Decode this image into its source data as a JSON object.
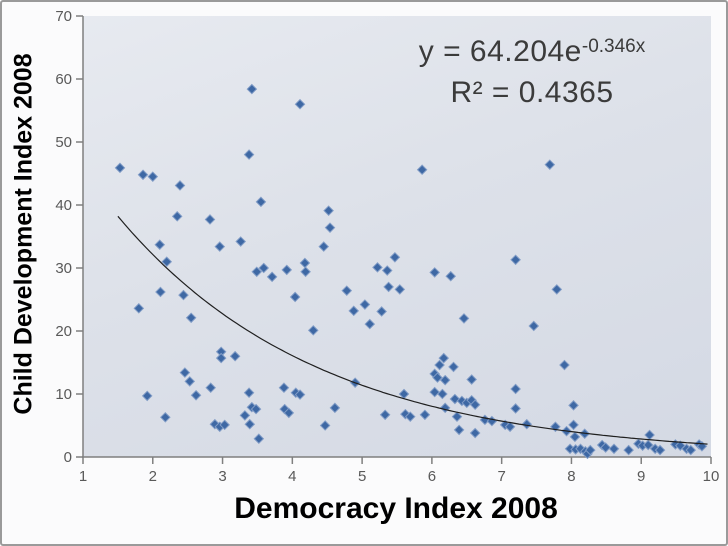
{
  "chart_data": {
    "type": "scatter",
    "title": "",
    "xlabel": "Democracy Index 2008",
    "ylabel": "Child Development Index 2008",
    "xlim": [
      1,
      10
    ],
    "ylim": [
      0,
      70
    ],
    "x_ticks": [
      1,
      2,
      3,
      4,
      5,
      6,
      7,
      8,
      9,
      10
    ],
    "y_ticks": [
      0,
      10,
      20,
      30,
      40,
      50,
      60,
      70
    ],
    "grid": false,
    "legend": "none",
    "equation": {
      "prefix": "y = 64.204e",
      "exponent": "-0.346x",
      "r_squared": "R² = 0.4365"
    },
    "trendline": {
      "type": "exponential",
      "a": 64.204,
      "b": -0.346,
      "x_start": 1.5,
      "x_end": 9.95
    },
    "points": [
      [
        1.53,
        45.9
      ],
      [
        1.8,
        23.6
      ],
      [
        1.86,
        44.8
      ],
      [
        1.92,
        9.7
      ],
      [
        2.0,
        44.5
      ],
      [
        2.1,
        33.7
      ],
      [
        2.11,
        26.2
      ],
      [
        2.18,
        6.3
      ],
      [
        2.2,
        31.0
      ],
      [
        2.35,
        38.2
      ],
      [
        2.39,
        43.1
      ],
      [
        2.44,
        25.7
      ],
      [
        2.46,
        13.4
      ],
      [
        2.53,
        12.0
      ],
      [
        2.55,
        22.1
      ],
      [
        2.62,
        9.8
      ],
      [
        2.82,
        37.7
      ],
      [
        2.83,
        11.0
      ],
      [
        2.89,
        5.2
      ],
      [
        2.96,
        33.4
      ],
      [
        2.96,
        4.8
      ],
      [
        2.98,
        16.7
      ],
      [
        2.98,
        15.7
      ],
      [
        3.03,
        5.1
      ],
      [
        3.18,
        16.0
      ],
      [
        3.26,
        34.2
      ],
      [
        3.32,
        6.6
      ],
      [
        3.38,
        48.0
      ],
      [
        3.38,
        10.2
      ],
      [
        3.39,
        5.2
      ],
      [
        3.42,
        58.4
      ],
      [
        3.42,
        7.9
      ],
      [
        3.48,
        7.6
      ],
      [
        3.49,
        29.4
      ],
      [
        3.52,
        2.9
      ],
      [
        3.55,
        40.5
      ],
      [
        3.59,
        30.0
      ],
      [
        3.71,
        28.6
      ],
      [
        3.88,
        11.0
      ],
      [
        3.89,
        7.6
      ],
      [
        3.92,
        29.7
      ],
      [
        3.95,
        7.0
      ],
      [
        4.04,
        25.4
      ],
      [
        4.05,
        10.2
      ],
      [
        4.11,
        56.0
      ],
      [
        4.11,
        9.9
      ],
      [
        4.18,
        30.8
      ],
      [
        4.19,
        29.4
      ],
      [
        4.3,
        20.1
      ],
      [
        4.45,
        33.4
      ],
      [
        4.47,
        5.0
      ],
      [
        4.52,
        39.1
      ],
      [
        4.54,
        36.4
      ],
      [
        4.61,
        7.8
      ],
      [
        4.78,
        26.4
      ],
      [
        4.88,
        23.2
      ],
      [
        4.9,
        11.8
      ],
      [
        5.04,
        24.2
      ],
      [
        5.11,
        21.1
      ],
      [
        5.22,
        30.1
      ],
      [
        5.28,
        23.1
      ],
      [
        5.33,
        6.7
      ],
      [
        5.36,
        29.6
      ],
      [
        5.38,
        27.0
      ],
      [
        5.47,
        31.7
      ],
      [
        5.54,
        26.6
      ],
      [
        5.6,
        10.0
      ],
      [
        5.62,
        6.8
      ],
      [
        5.69,
        6.4
      ],
      [
        5.86,
        45.6
      ],
      [
        5.9,
        6.7
      ],
      [
        6.04,
        29.3
      ],
      [
        6.04,
        13.2
      ],
      [
        6.04,
        10.3
      ],
      [
        6.08,
        12.6
      ],
      [
        6.11,
        14.6
      ],
      [
        6.15,
        10.0
      ],
      [
        6.17,
        15.7
      ],
      [
        6.19,
        12.2
      ],
      [
        6.19,
        7.8
      ],
      [
        6.27,
        28.7
      ],
      [
        6.31,
        14.3
      ],
      [
        6.33,
        9.2
      ],
      [
        6.36,
        6.4
      ],
      [
        6.39,
        4.3
      ],
      [
        6.43,
        8.9
      ],
      [
        6.46,
        22.0
      ],
      [
        6.5,
        8.6
      ],
      [
        6.57,
        9.0
      ],
      [
        6.57,
        12.3
      ],
      [
        6.62,
        8.3
      ],
      [
        6.62,
        3.8
      ],
      [
        6.76,
        5.9
      ],
      [
        6.86,
        5.7
      ],
      [
        7.05,
        5.1
      ],
      [
        7.12,
        4.8
      ],
      [
        7.2,
        31.3
      ],
      [
        7.2,
        10.8
      ],
      [
        7.2,
        7.7
      ],
      [
        7.36,
        5.2
      ],
      [
        7.46,
        20.8
      ],
      [
        7.69,
        46.4
      ],
      [
        7.77,
        4.8
      ],
      [
        7.79,
        26.6
      ],
      [
        7.9,
        14.6
      ],
      [
        7.93,
        4.1
      ],
      [
        7.98,
        1.3
      ],
      [
        8.03,
        8.2
      ],
      [
        8.03,
        5.1
      ],
      [
        8.05,
        3.2
      ],
      [
        8.06,
        1.2
      ],
      [
        8.13,
        1.3
      ],
      [
        8.19,
        3.7
      ],
      [
        8.2,
        0.9
      ],
      [
        8.23,
        0.5
      ],
      [
        8.27,
        1.1
      ],
      [
        8.44,
        1.9
      ],
      [
        8.49,
        1.5
      ],
      [
        8.61,
        1.3
      ],
      [
        8.82,
        1.1
      ],
      [
        8.96,
        2.1
      ],
      [
        9.02,
        1.8
      ],
      [
        9.1,
        1.9
      ],
      [
        9.12,
        3.5
      ],
      [
        9.2,
        1.3
      ],
      [
        9.27,
        1.1
      ],
      [
        9.49,
        2.0
      ],
      [
        9.56,
        1.8
      ],
      [
        9.65,
        1.3
      ],
      [
        9.71,
        1.1
      ],
      [
        9.83,
        2.0
      ],
      [
        9.87,
        1.7
      ]
    ]
  },
  "colors": {
    "marker": "#3e68a4",
    "marker_edge": "#819cc6",
    "trendline": "#1f1f1f",
    "axis": "#7f7f7f",
    "tick_label": "#595959",
    "equation_text": "#3b3b3b",
    "axis_title": "#000000"
  }
}
